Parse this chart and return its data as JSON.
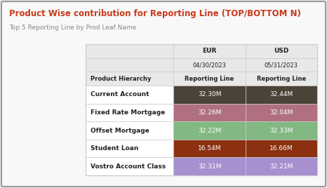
{
  "title": "Product Wise contribution for Reporting Line (TOP/BOTTOM N)",
  "subtitle": "Top 5 Reporting Line by Prod Leaf Name",
  "title_color": "#C8391A",
  "subtitle_color": "#888888",
  "background_color": "#F0F0F0",
  "border_color": "#333333",
  "outer_border_color": "#AAAAAA",
  "col_headers_row1": [
    "",
    "EUR",
    "USD"
  ],
  "col_headers_row2": [
    "",
    "04/30/2023",
    "05/31/2023"
  ],
  "col_headers_row3": [
    "Product Hierarchy",
    "Reporting Line",
    "Reporting Line"
  ],
  "rows": [
    {
      "label": "Current Account",
      "eur": "32.30M",
      "usd": "32.44M",
      "color": "#4B4238"
    },
    {
      "label": "Fixed Rate Mortgage",
      "eur": "32.26M",
      "usd": "32.04M",
      "color": "#B07080"
    },
    {
      "label": "Offset Mortgage",
      "eur": "32.22M",
      "usd": "32.33M",
      "color": "#82B882"
    },
    {
      "label": "Student Loan",
      "eur": "16.54M",
      "usd": "16.66M",
      "color": "#8B3010"
    },
    {
      "label": "Vostro Account Class",
      "eur": "32.31M",
      "usd": "32.21M",
      "color": "#A890D0"
    }
  ],
  "header_bg": "#E8E8E8",
  "text_color_dark": "#222222",
  "cell_text_color": "#FFFFFF",
  "figsize": [
    4.66,
    2.68
  ],
  "dpi": 100,
  "fig_bg": "#ECECEC",
  "table_bg": "#FFFFFF",
  "grid_color": "#CCCCCC"
}
